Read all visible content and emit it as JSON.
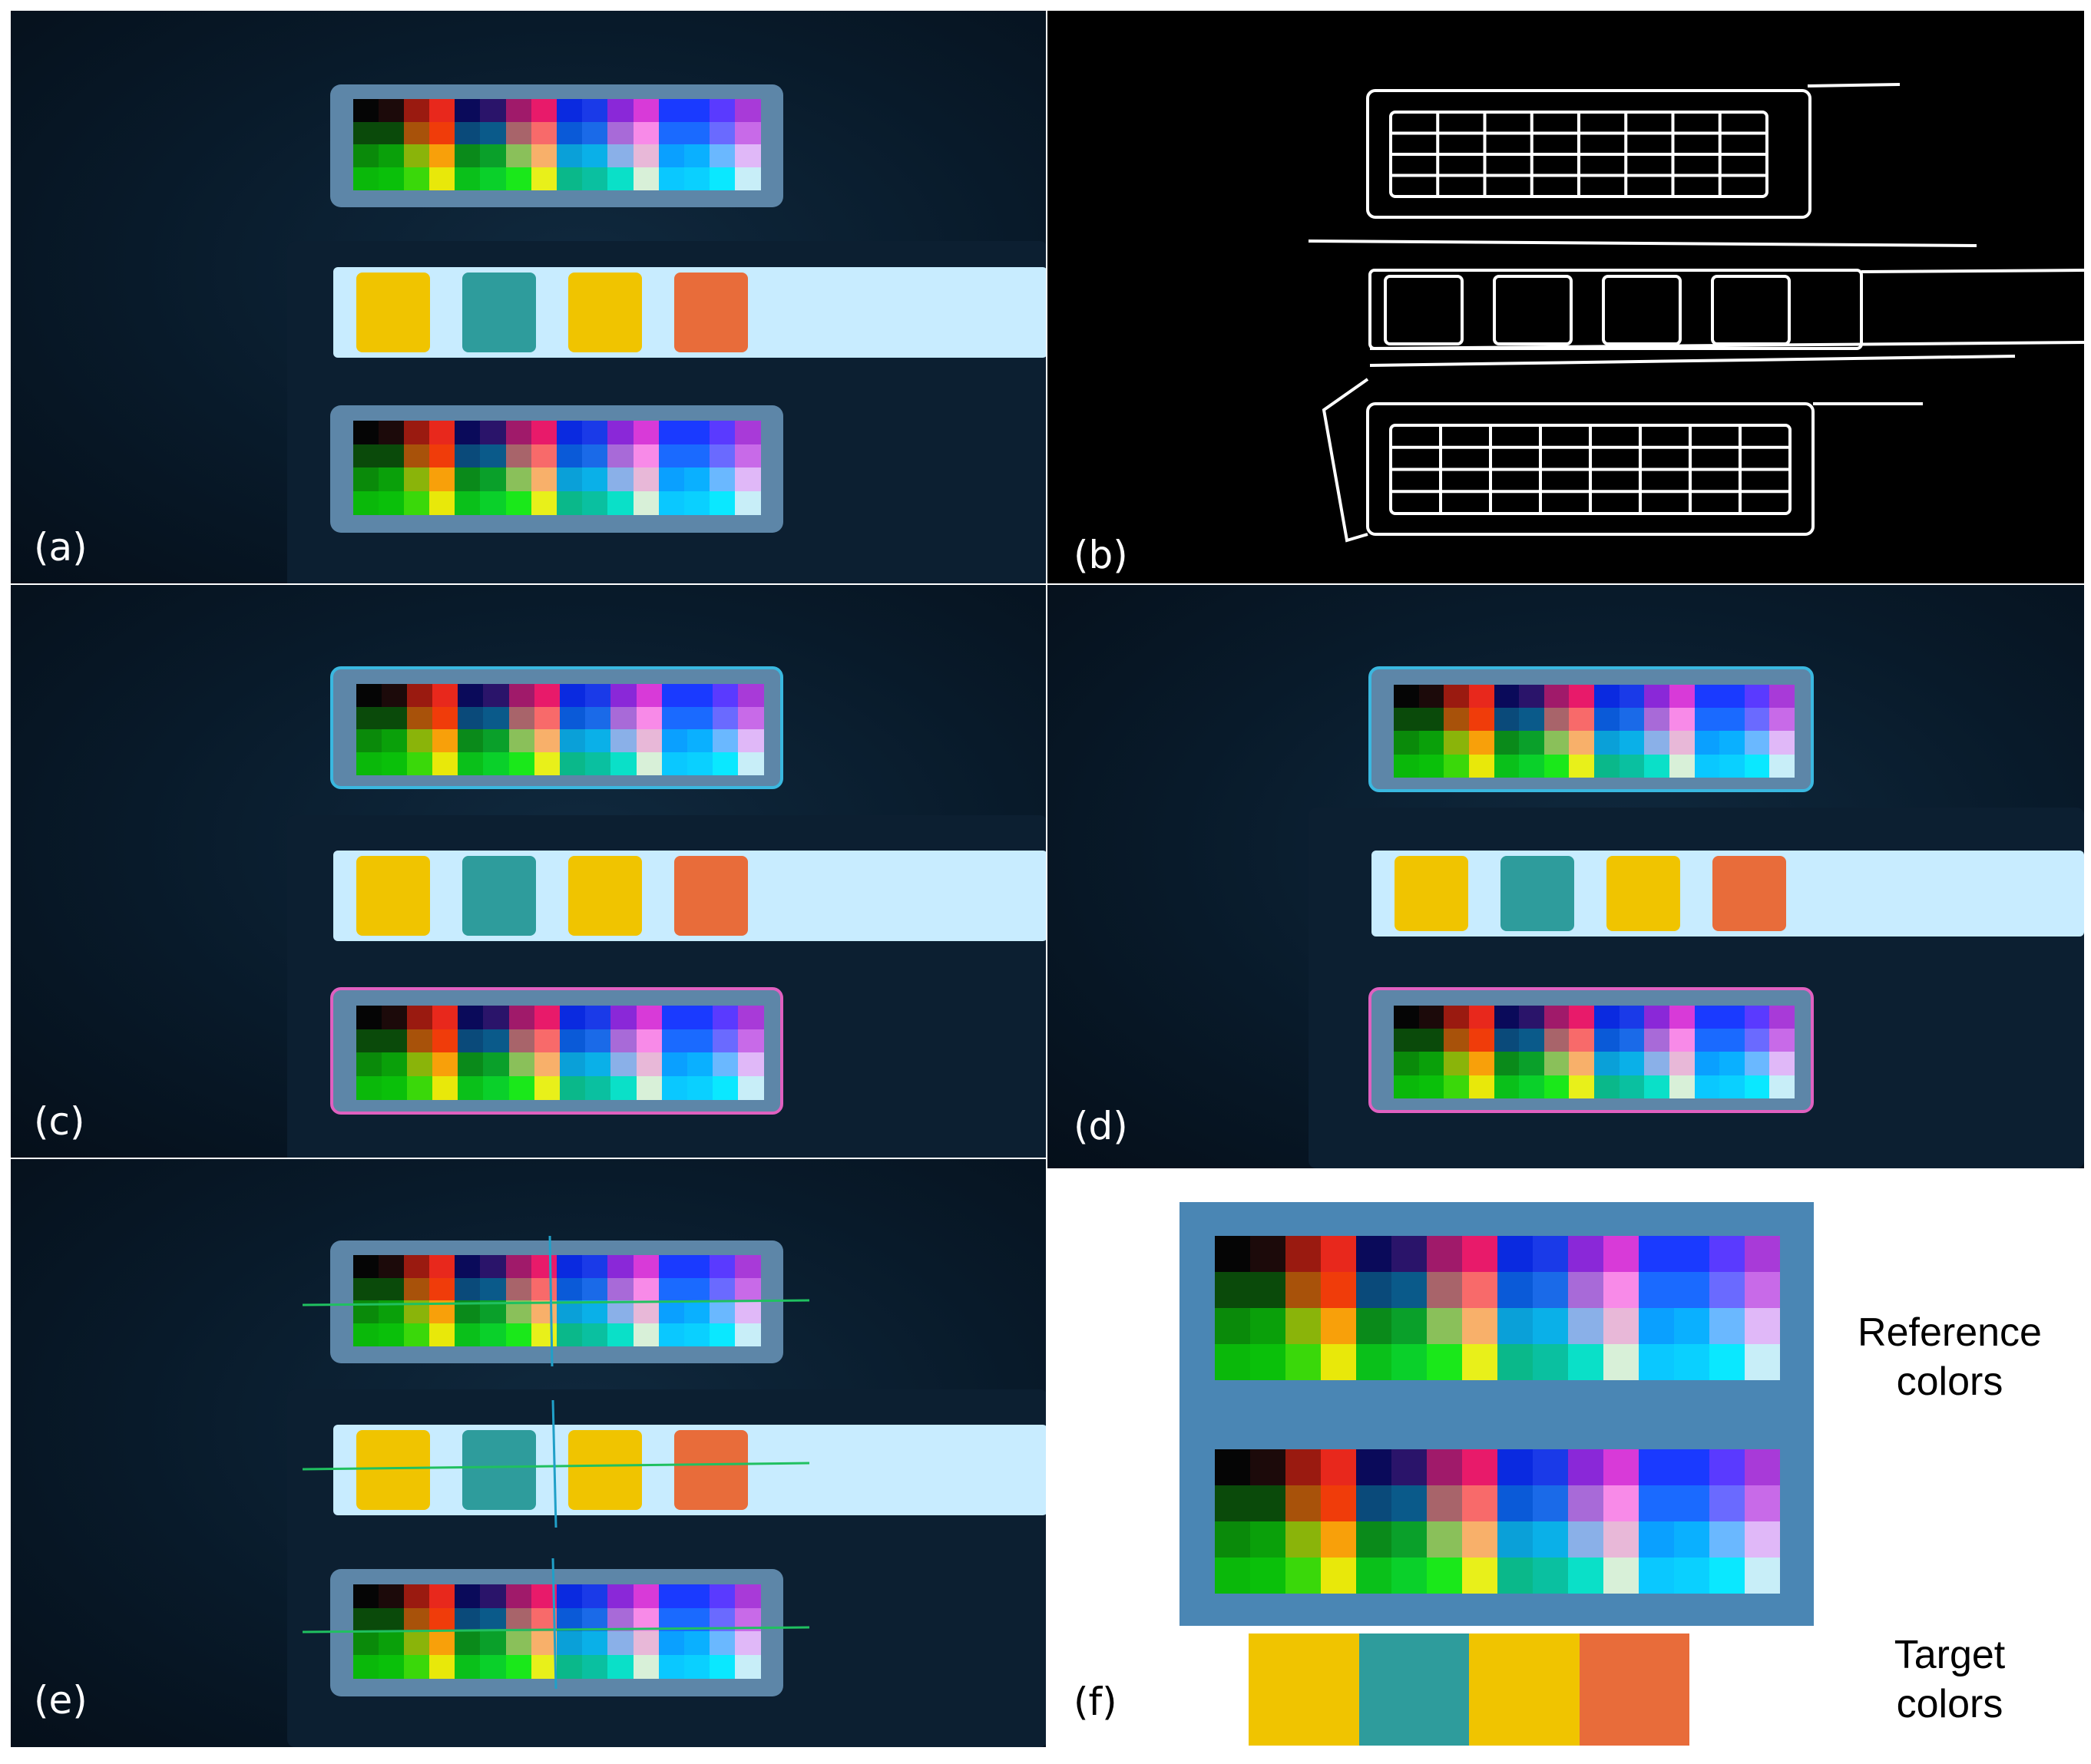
{
  "labels": {
    "a": "(a)",
    "b": "(b)",
    "c": "(c)",
    "d": "(d)",
    "e": "(e)",
    "f": "(f)"
  },
  "legend": {
    "reference": "Reference colors",
    "target": "Target colors"
  },
  "colors": {
    "target": [
      "#f0c400",
      "#2e9c9c",
      "#f0c400",
      "#e86c3a"
    ],
    "card_bg": "#5d86a8",
    "strip_bg": "#c8ecff",
    "chart_rows": [
      [
        "#050505",
        "#1c0a0a",
        "#9a1a10",
        "#e8281c",
        "#0a0a5a",
        "#2a146a",
        "#a01a6a",
        "#e81a6a",
        "#0a2ae0",
        "#1a3ae8",
        "#8a28d8",
        "#d83ad8",
        "#1a3aff",
        "#1a3aff",
        "#5a3aff",
        "#a83ad8"
      ],
      [
        "#0a4a0a",
        "#0a4a0a",
        "#a8520a",
        "#f03c0a",
        "#0a4a7a",
        "#0a5a8a",
        "#a8646a",
        "#f86a6a",
        "#0a5ad8",
        "#1a6ae8",
        "#a86ad8",
        "#f88ae8",
        "#1a6aff",
        "#1a6aff",
        "#6a6aff",
        "#c86ae8"
      ],
      [
        "#0a8a0a",
        "#0aa00a",
        "#8ab40a",
        "#f8a00a",
        "#0a8a1a",
        "#0aa02a",
        "#8ac05a",
        "#f8b06a",
        "#0aa0d8",
        "#0ab0e8",
        "#8ab0e8",
        "#e8b8d8",
        "#0aa0ff",
        "#0ab0ff",
        "#6ab8ff",
        "#e0b8f8"
      ],
      [
        "#0ab80a",
        "#0ac00a",
        "#3ad80a",
        "#e8e80a",
        "#0ac01a",
        "#0ad02a",
        "#1ae81a",
        "#e8f01a",
        "#0ab88a",
        "#0ac0a0",
        "#0ae0c8",
        "#d8f0d8",
        "#0ac8ff",
        "#0ad0ff",
        "#0ae8ff",
        "#c8eef8"
      ]
    ]
  }
}
